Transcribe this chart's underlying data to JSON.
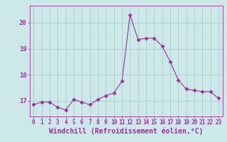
{
  "x": [
    0,
    1,
    2,
    3,
    4,
    5,
    6,
    7,
    8,
    9,
    10,
    11,
    12,
    13,
    14,
    15,
    16,
    17,
    18,
    19,
    20,
    21,
    22,
    23
  ],
  "y": [
    16.85,
    16.95,
    16.95,
    16.75,
    16.65,
    17.05,
    16.95,
    16.85,
    17.05,
    17.2,
    17.3,
    17.75,
    20.3,
    19.35,
    19.4,
    19.4,
    19.1,
    18.5,
    17.8,
    17.45,
    17.4,
    17.35,
    17.35,
    17.1
  ],
  "line_color": "#993399",
  "marker": "D",
  "marker_size": 2.5,
  "bg_color": "#cce8e8",
  "grid_color": "#aacccc",
  "xlabel": "Windchill (Refroidissement éolien,°C)",
  "xlim": [
    -0.5,
    23.5
  ],
  "ylim": [
    16.4,
    20.65
  ],
  "yticks": [
    17,
    18,
    19,
    20
  ],
  "xticks": [
    0,
    1,
    2,
    3,
    4,
    5,
    6,
    7,
    8,
    9,
    10,
    11,
    12,
    13,
    14,
    15,
    16,
    17,
    18,
    19,
    20,
    21,
    22,
    23
  ],
  "xtick_fontsize": 5.5,
  "ytick_fontsize": 6.5,
  "xlabel_fontsize": 7.0
}
